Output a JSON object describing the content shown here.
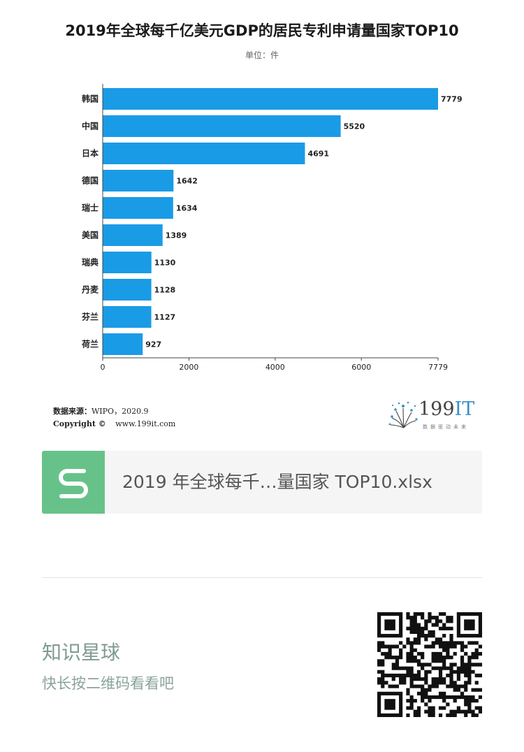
{
  "chart_data": {
    "type": "bar",
    "orientation": "horizontal",
    "title": "2019年全球每千亿美元GDP的居民专利申请量国家TOP10",
    "subtitle": "单位：件",
    "categories": [
      "韩国",
      "中国",
      "日本",
      "德国",
      "瑞士",
      "美国",
      "瑞典",
      "丹麦",
      "芬兰",
      "荷兰"
    ],
    "values": [
      7779,
      5520,
      4691,
      1642,
      1634,
      1389,
      1130,
      1128,
      1127,
      927
    ],
    "xlim": [
      0,
      7779
    ],
    "xticks": [
      "0",
      "2000",
      "4000",
      "6000",
      "7779"
    ],
    "xtick_values": [
      0,
      2000,
      4000,
      6000,
      7779
    ],
    "bar_color": "#1a9be6",
    "grid": false,
    "legend": "none"
  },
  "source": {
    "label": "数据来源：",
    "value": "WIPO，2020.9",
    "copyright_label": "Copyright ©",
    "copyright_url": "www.199it.com"
  },
  "brand": {
    "name_num": "199",
    "name_it": "IT",
    "tagline": "数据驱动未来",
    "icon": "dandelion-logo-icon"
  },
  "attachment": {
    "icon": "spreadsheet-s-icon",
    "icon_color": "#67c28a",
    "file_name": "2019 年全球每千…量国家 TOP10.xlsx"
  },
  "footer": {
    "title": "知识星球",
    "subtitle": "快长按二维码看看吧",
    "qr_icon": "qr-code-icon"
  }
}
